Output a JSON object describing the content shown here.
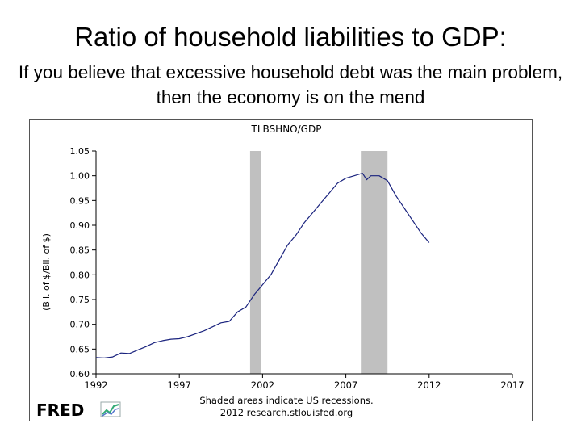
{
  "slide": {
    "title": "Ratio of household liabilities to GDP:",
    "subtitle": "If you believe that excessive household debt was the main problem, then the economy is on the mend"
  },
  "chart_data": {
    "type": "line",
    "title": "TLBSHNO/GDP",
    "xlabel": "",
    "ylabel": "(Bil. of $/Bil. of $)",
    "xlim": [
      1992,
      2017
    ],
    "ylim": [
      0.6,
      1.05
    ],
    "x_ticks": [
      "1992",
      "1997",
      "2002",
      "2007",
      "2012",
      "2017"
    ],
    "y_ticks": [
      "0.60",
      "0.65",
      "0.70",
      "0.75",
      "0.80",
      "0.85",
      "0.90",
      "0.95",
      "1.00",
      "1.05"
    ],
    "grid": false,
    "recessions": [
      {
        "start": 2001.25,
        "end": 2001.9
      },
      {
        "start": 2007.9,
        "end": 2009.5
      }
    ],
    "series": [
      {
        "color": "#1a237e",
        "x": [
          1992.0,
          1992.5,
          1993.0,
          1993.5,
          1994.0,
          1994.5,
          1995.0,
          1995.5,
          1996.0,
          1996.5,
          1997.0,
          1997.5,
          1998.0,
          1998.5,
          1999.0,
          1999.5,
          2000.0,
          2000.5,
          2001.0,
          2001.5,
          2002.0,
          2002.5,
          2003.0,
          2003.5,
          2004.0,
          2004.5,
          2005.0,
          2005.5,
          2006.0,
          2006.5,
          2007.0,
          2007.5,
          2008.0,
          2008.25,
          2008.5,
          2009.0,
          2009.5,
          2010.0,
          2010.5,
          2011.0,
          2011.5,
          2012.0
        ],
        "values": [
          0.633,
          0.632,
          0.634,
          0.642,
          0.641,
          0.648,
          0.655,
          0.663,
          0.667,
          0.67,
          0.671,
          0.675,
          0.681,
          0.687,
          0.695,
          0.703,
          0.706,
          0.725,
          0.735,
          0.76,
          0.78,
          0.8,
          0.83,
          0.86,
          0.88,
          0.905,
          0.925,
          0.945,
          0.965,
          0.985,
          0.995,
          1.0,
          1.005,
          0.992,
          1.0,
          1.0,
          0.99,
          0.96,
          0.935,
          0.91,
          0.885,
          0.865
        ]
      }
    ],
    "footer": {
      "logo": "FRED",
      "note_line1": "Shaded areas indicate US recessions.",
      "note_line2": "2012 research.stlouisfed.org"
    }
  }
}
